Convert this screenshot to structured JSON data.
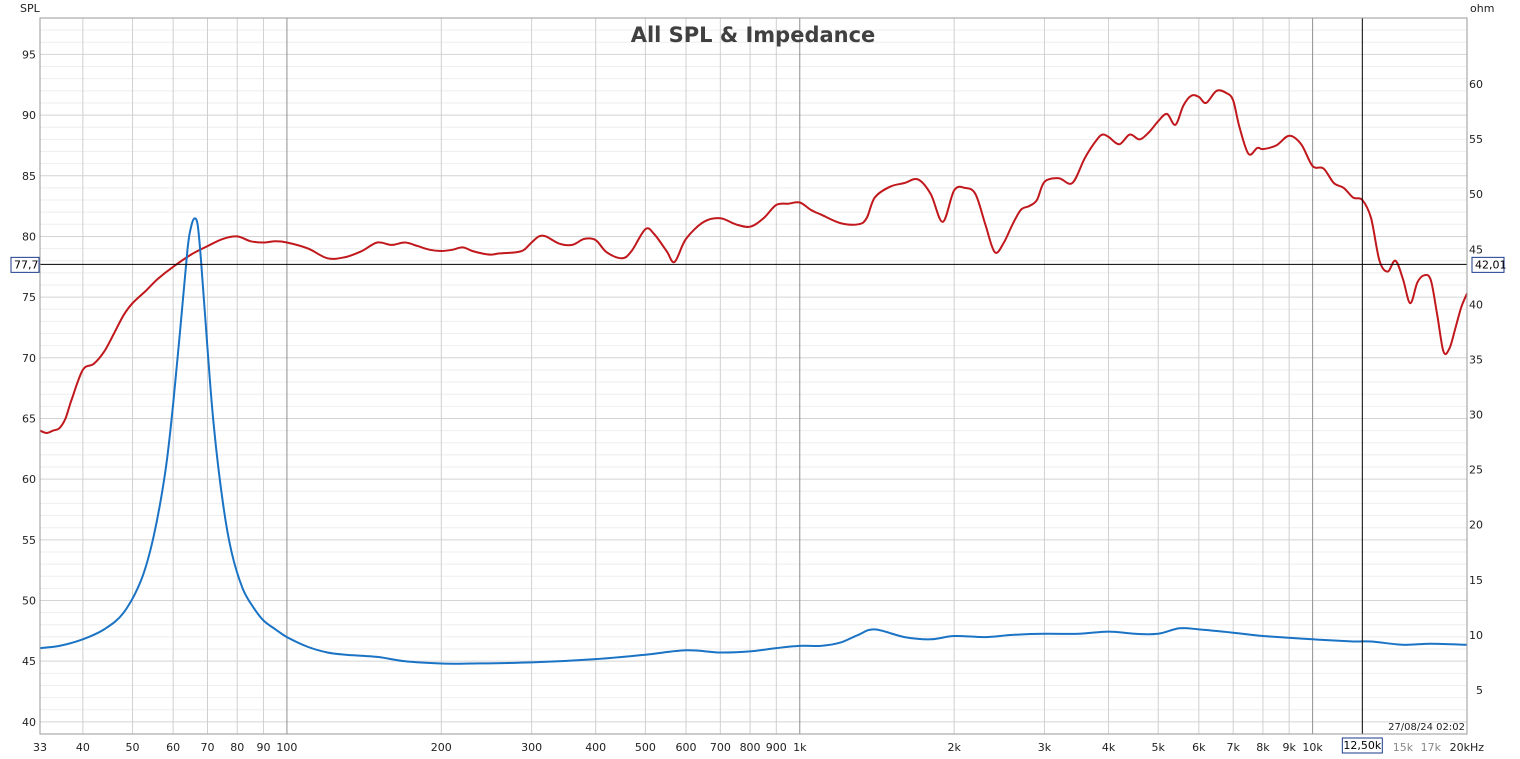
{
  "chart_data": {
    "type": "line",
    "title": "All SPL & Impedance",
    "ylabel": "SPL",
    "y2label": "ohm",
    "xunit": "kHz",
    "xscale": "log",
    "xlim": [
      33,
      20000
    ],
    "ylim": [
      39,
      98
    ],
    "y2lim": [
      1,
      66
    ],
    "grid": true,
    "x_ticks": [
      {
        "v": 33,
        "label": "33"
      },
      {
        "v": 40,
        "label": "40"
      },
      {
        "v": 50,
        "label": "50"
      },
      {
        "v": 60,
        "label": "60"
      },
      {
        "v": 70,
        "label": "70"
      },
      {
        "v": 80,
        "label": "80"
      },
      {
        "v": 90,
        "label": "90"
      },
      {
        "v": 100,
        "label": "100"
      },
      {
        "v": 200,
        "label": "200"
      },
      {
        "v": 300,
        "label": "300"
      },
      {
        "v": 400,
        "label": "400"
      },
      {
        "v": 500,
        "label": "500"
      },
      {
        "v": 600,
        "label": "600"
      },
      {
        "v": 700,
        "label": "700"
      },
      {
        "v": 800,
        "label": "800"
      },
      {
        "v": 900,
        "label": "900"
      },
      {
        "v": 1000,
        "label": "1k"
      },
      {
        "v": 2000,
        "label": "2k"
      },
      {
        "v": 3000,
        "label": "3k"
      },
      {
        "v": 4000,
        "label": "4k"
      },
      {
        "v": 5000,
        "label": "5k"
      },
      {
        "v": 6000,
        "label": "6k"
      },
      {
        "v": 7000,
        "label": "7k"
      },
      {
        "v": 8000,
        "label": "8k"
      },
      {
        "v": 9000,
        "label": "9k"
      },
      {
        "v": 10000,
        "label": "10k"
      },
      {
        "v": 15000,
        "label": "15k",
        "dim": true
      },
      {
        "v": 17000,
        "label": "17k",
        "dim": true
      },
      {
        "v": 20000,
        "label": "20kHz"
      }
    ],
    "y_ticks": [
      40,
      45,
      50,
      55,
      60,
      65,
      70,
      75,
      80,
      85,
      90,
      95
    ],
    "y2_ticks": [
      5,
      10,
      15,
      20,
      25,
      30,
      35,
      40,
      45,
      50,
      55,
      60
    ],
    "cursor": {
      "x": 12500,
      "x_label": "12,50k",
      "y": 77.7,
      "y_label": "77,7",
      "y2_label": "42,01"
    },
    "timestamp": "27/08/24 02:02",
    "series": [
      {
        "axis": "left",
        "color": "#c0181c",
        "x": [
          33,
          34,
          35,
          36,
          37,
          38,
          40,
          42,
          44,
          46,
          48,
          50,
          53,
          56,
          60,
          65,
          70,
          75,
          80,
          85,
          90,
          95,
          100,
          110,
          120,
          130,
          140,
          150,
          160,
          170,
          180,
          190,
          200,
          210,
          220,
          230,
          240,
          250,
          260,
          280,
          290,
          300,
          310,
          320,
          340,
          360,
          380,
          400,
          420,
          450,
          470,
          500,
          520,
          550,
          570,
          600,
          650,
          700,
          750,
          800,
          850,
          900,
          950,
          1000,
          1050,
          1100,
          1200,
          1300,
          1350,
          1400,
          1500,
          1600,
          1700,
          1800,
          1900,
          2000,
          2100,
          2200,
          2300,
          2400,
          2500,
          2600,
          2700,
          2800,
          2900,
          3000,
          3200,
          3400,
          3600,
          3800,
          3900,
          4000,
          4200,
          4400,
          4600,
          4800,
          5000,
          5200,
          5400,
          5600,
          5800,
          6000,
          6200,
          6500,
          6800,
          7000,
          7200,
          7500,
          7800,
          8000,
          8500,
          9000,
          9500,
          10000,
          10500,
          11000,
          11500,
          12000,
          12500,
          13000,
          13500,
          14000,
          14500,
          15000,
          15500,
          16000,
          16500,
          17000,
          17500,
          18000,
          18500,
          19000,
          19500,
          20000
        ],
        "y": [
          64.0,
          63.8,
          64.0,
          64.2,
          65.0,
          66.5,
          69.0,
          69.5,
          70.5,
          72.0,
          73.5,
          74.5,
          75.5,
          76.5,
          77.5,
          78.5,
          79.2,
          79.8,
          80.0,
          79.6,
          79.5,
          79.6,
          79.5,
          79.0,
          78.2,
          78.3,
          78.8,
          79.5,
          79.3,
          79.5,
          79.2,
          78.9,
          78.8,
          78.9,
          79.1,
          78.8,
          78.6,
          78.5,
          78.6,
          78.7,
          78.9,
          79.5,
          80.0,
          80.0,
          79.4,
          79.3,
          79.8,
          79.7,
          78.7,
          78.2,
          78.8,
          80.6,
          80.2,
          78.8,
          77.9,
          79.8,
          81.2,
          81.5,
          81.0,
          80.8,
          81.5,
          82.6,
          82.7,
          82.8,
          82.2,
          81.8,
          81.1,
          81.0,
          81.5,
          83.2,
          84.1,
          84.4,
          84.7,
          83.5,
          81.2,
          83.8,
          84.0,
          83.5,
          81.0,
          78.7,
          79.5,
          81.0,
          82.2,
          82.5,
          83.0,
          84.5,
          84.8,
          84.4,
          86.5,
          88.0,
          88.4,
          88.2,
          87.6,
          88.4,
          88.0,
          88.6,
          89.5,
          90.1,
          89.2,
          90.8,
          91.6,
          91.5,
          91.0,
          92.0,
          91.8,
          91.2,
          89.0,
          86.8,
          87.3,
          87.2,
          87.5,
          88.3,
          87.6,
          85.8,
          85.6,
          84.4,
          84.0,
          83.2,
          83.0,
          81.5,
          78.0,
          77.1,
          78.0,
          76.5,
          74.5,
          76.2,
          76.8,
          76.4,
          73.5,
          70.5,
          70.8,
          72.5,
          74.2,
          75.3
        ]
      },
      {
        "axis": "right",
        "color": "#1a73c4",
        "x": [
          33,
          36,
          40,
          44,
          48,
          52,
          55,
          58,
          60,
          62,
          64,
          65,
          66,
          67,
          68,
          70,
          72,
          75,
          78,
          82,
          86,
          90,
          95,
          100,
          110,
          120,
          130,
          150,
          170,
          200,
          230,
          300,
          400,
          500,
          600,
          700,
          800,
          900,
          1000,
          1100,
          1200,
          1300,
          1400,
          1600,
          1800,
          2000,
          2300,
          2600,
          3000,
          3500,
          4000,
          4500,
          5000,
          5500,
          6000,
          7000,
          8000,
          10000,
          12000,
          13000,
          15000,
          17000,
          20000
        ],
        "y": [
          8.8,
          9.0,
          9.6,
          10.5,
          12.0,
          15.0,
          19.0,
          25.0,
          31.0,
          38.0,
          45.0,
          47.0,
          47.8,
          47.2,
          44.0,
          36.0,
          29.0,
          22.0,
          17.5,
          14.2,
          12.5,
          11.3,
          10.5,
          9.8,
          8.9,
          8.4,
          8.2,
          8.0,
          7.6,
          7.4,
          7.4,
          7.5,
          7.8,
          8.2,
          8.6,
          8.4,
          8.5,
          8.8,
          9.0,
          9.0,
          9.3,
          10.0,
          10.5,
          9.8,
          9.6,
          9.9,
          9.8,
          10.0,
          10.1,
          10.1,
          10.3,
          10.1,
          10.1,
          10.6,
          10.5,
          10.2,
          9.9,
          9.6,
          9.4,
          9.4,
          9.1,
          9.2,
          9.1
        ]
      }
    ]
  }
}
